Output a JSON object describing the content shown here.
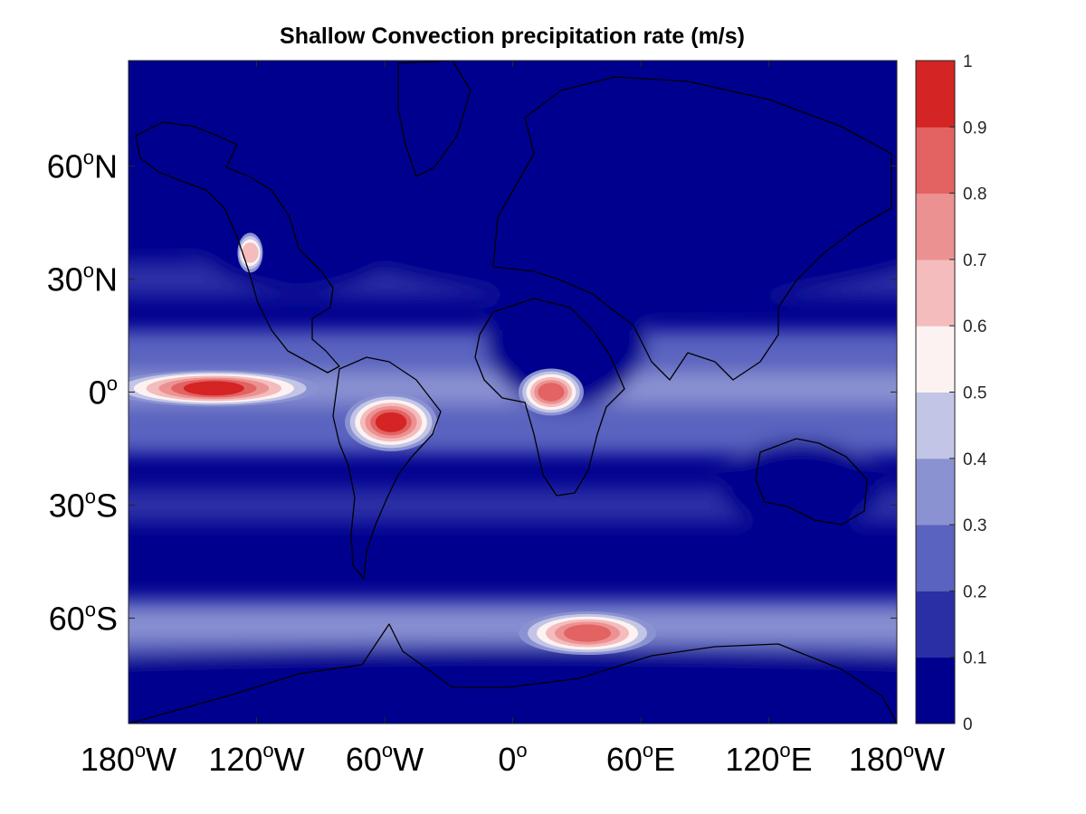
{
  "chart_data": {
    "type": "heatmap",
    "subtype": "filled-contour-map",
    "title": "Shallow Convection precipitation rate (m/s)",
    "x_ticks": [
      {
        "value": -180,
        "label": "180",
        "sup": "o",
        "suffix": "W"
      },
      {
        "value": -120,
        "label": "120",
        "sup": "o",
        "suffix": "W"
      },
      {
        "value": -60,
        "label": "60",
        "sup": "o",
        "suffix": "W"
      },
      {
        "value": 0,
        "label": "0",
        "sup": "o",
        "suffix": ""
      },
      {
        "value": 60,
        "label": "60",
        "sup": "o",
        "suffix": "E"
      },
      {
        "value": 120,
        "label": "120",
        "sup": "o",
        "suffix": "E"
      },
      {
        "value": 180,
        "label": "180",
        "sup": "o",
        "suffix": "W"
      }
    ],
    "y_ticks": [
      {
        "value": 60,
        "label": "60",
        "sup": "o",
        "suffix": "N"
      },
      {
        "value": 30,
        "label": "30",
        "sup": "o",
        "suffix": "N"
      },
      {
        "value": 0,
        "label": "0",
        "sup": "o",
        "suffix": ""
      },
      {
        "value": -30,
        "label": "30",
        "sup": "o",
        "suffix": "S"
      },
      {
        "value": -60,
        "label": "60",
        "sup": "o",
        "suffix": "S"
      }
    ],
    "xlim": [
      -180,
      180
    ],
    "ylim": [
      -88,
      88
    ],
    "colorbar": {
      "location": "right",
      "ticks": [
        "0",
        "0.1",
        "0.2",
        "0.3",
        "0.4",
        "0.5",
        "0.6",
        "0.7",
        "0.8",
        "0.9",
        "1"
      ],
      "levels": [
        0,
        0.1,
        0.2,
        0.3,
        0.4,
        0.5,
        0.6,
        0.7,
        0.8,
        0.9,
        1.0
      ],
      "colors": [
        "#00008f",
        "#2a2fa5",
        "#5a63bf",
        "#8b92d2",
        "#c2c5e6",
        "#fdf2f2",
        "#f4bcbc",
        "#ec9191",
        "#e36262",
        "#d42424"
      ]
    },
    "features": [
      {
        "name": "itcz-pacific",
        "lon": -140,
        "lat": 1,
        "value": 0.92
      },
      {
        "name": "amazon",
        "lon": -57,
        "lat": -8,
        "value": 0.88
      },
      {
        "name": "congo",
        "lon": 18,
        "lat": 0,
        "value": 0.75
      },
      {
        "name": "southern-ocean-storm-track",
        "lon": 35,
        "lat": -64,
        "value": 0.82
      },
      {
        "name": "california-coast",
        "lon": -123,
        "lat": 37,
        "value": 0.6
      }
    ]
  }
}
